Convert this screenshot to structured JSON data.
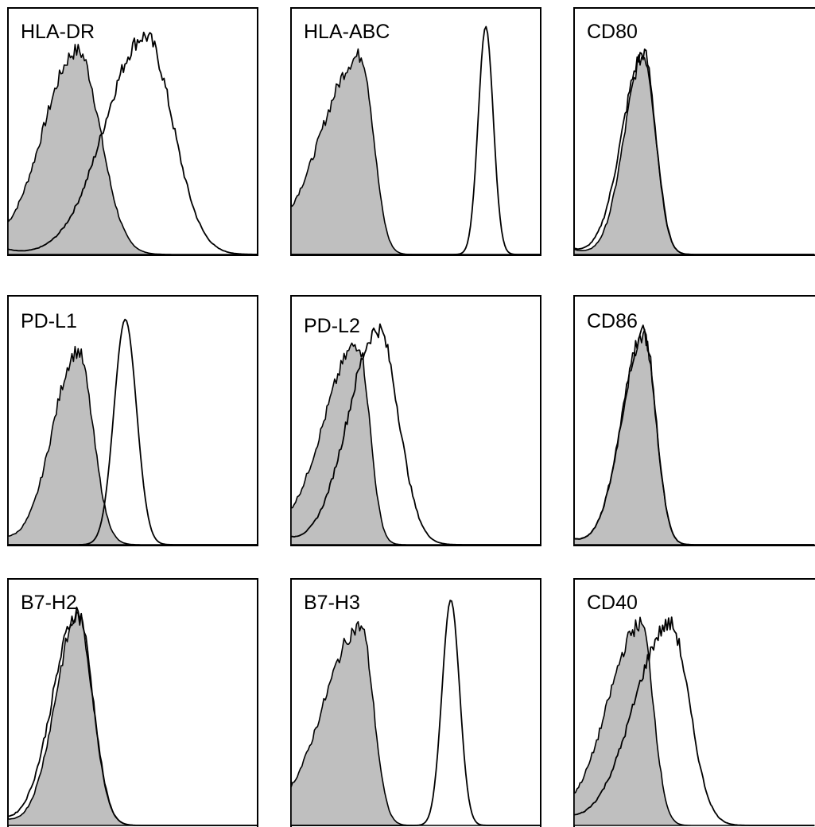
{
  "colors": {
    "isotype_fill": "#bfbfbf",
    "line": "#000000",
    "background": "#ffffff"
  },
  "chart_data": [
    {
      "type": "area",
      "title": "HLA-DR",
      "xlim": [
        0,
        1
      ],
      "ylim": [
        0,
        1
      ],
      "series": [
        {
          "style": "filled",
          "peak": 0.28,
          "width_left": 0.14,
          "width_right": 0.09,
          "height": 0.84,
          "jagged": true
        },
        {
          "style": "open",
          "peak": 0.55,
          "width_left": 0.16,
          "width_right": 0.11,
          "height": 0.9,
          "jagged": true
        }
      ]
    },
    {
      "type": "area",
      "title": "HLA-ABC",
      "xlim": [
        0,
        1
      ],
      "ylim": [
        0,
        1
      ],
      "series": [
        {
          "style": "filled",
          "peak": 0.28,
          "width_left": 0.16,
          "width_right": 0.05,
          "height": 0.82,
          "jagged": true
        },
        {
          "style": "open",
          "peak": 0.78,
          "width_left": 0.03,
          "width_right": 0.03,
          "height": 0.94,
          "jagged": false
        }
      ]
    },
    {
      "type": "area",
      "title": "CD80",
      "xlim": [
        0,
        1
      ],
      "ylim": [
        0,
        1
      ],
      "series": [
        {
          "style": "filled",
          "peak": 0.29,
          "width_left": 0.08,
          "width_right": 0.05,
          "height": 0.82,
          "jagged": true
        },
        {
          "style": "open",
          "peak": 0.29,
          "width_left": 0.09,
          "width_right": 0.05,
          "height": 0.83,
          "jagged": true
        }
      ]
    },
    {
      "type": "area",
      "title": "PD-L1",
      "xlim": [
        0,
        1
      ],
      "ylim": [
        0,
        1
      ],
      "series": [
        {
          "style": "filled",
          "peak": 0.28,
          "width_left": 0.1,
          "width_right": 0.06,
          "height": 0.79,
          "jagged": true
        },
        {
          "style": "open",
          "peak": 0.47,
          "width_left": 0.045,
          "width_right": 0.045,
          "height": 0.92,
          "jagged": false
        }
      ]
    },
    {
      "type": "area",
      "title": "PD-L2",
      "xlim": [
        0,
        1
      ],
      "ylim": [
        0,
        1
      ],
      "series": [
        {
          "style": "filled",
          "peak": 0.27,
          "width_left": 0.14,
          "width_right": 0.045,
          "height": 0.82,
          "jagged": true
        },
        {
          "style": "open",
          "peak": 0.35,
          "width_left": 0.12,
          "width_right": 0.08,
          "height": 0.88,
          "jagged": true
        }
      ]
    },
    {
      "type": "area",
      "title": "CD86",
      "xlim": [
        0,
        1
      ],
      "ylim": [
        0,
        1
      ],
      "series": [
        {
          "style": "filled",
          "peak": 0.29,
          "width_left": 0.09,
          "width_right": 0.05,
          "height": 0.86,
          "jagged": true
        },
        {
          "style": "open",
          "peak": 0.29,
          "width_left": 0.09,
          "width_right": 0.05,
          "height": 0.87,
          "jagged": true
        }
      ]
    },
    {
      "type": "area",
      "title": "B7-H2",
      "xlim": [
        0,
        1
      ],
      "ylim": [
        0,
        1
      ],
      "series": [
        {
          "style": "filled",
          "peak": 0.28,
          "width_left": 0.09,
          "width_right": 0.06,
          "height": 0.86,
          "jagged": true
        },
        {
          "style": "open",
          "peak": 0.28,
          "width_left": 0.1,
          "width_right": 0.06,
          "height": 0.88,
          "jagged": true
        }
      ]
    },
    {
      "type": "area",
      "title": "B7-H3",
      "xlim": [
        0,
        1
      ],
      "ylim": [
        0,
        1
      ],
      "series": [
        {
          "style": "filled",
          "peak": 0.28,
          "width_left": 0.15,
          "width_right": 0.05,
          "height": 0.82,
          "jagged": true
        },
        {
          "style": "open",
          "peak": 0.64,
          "width_left": 0.035,
          "width_right": 0.035,
          "height": 0.93,
          "jagged": false
        }
      ]
    },
    {
      "type": "area",
      "title": "CD40",
      "xlim": [
        0,
        1
      ],
      "ylim": [
        0,
        1
      ],
      "series": [
        {
          "style": "filled",
          "peak": 0.28,
          "width_left": 0.14,
          "width_right": 0.05,
          "height": 0.83,
          "jagged": true
        },
        {
          "style": "open",
          "peak": 0.4,
          "width_left": 0.15,
          "width_right": 0.08,
          "height": 0.83,
          "jagged": true
        }
      ]
    }
  ]
}
